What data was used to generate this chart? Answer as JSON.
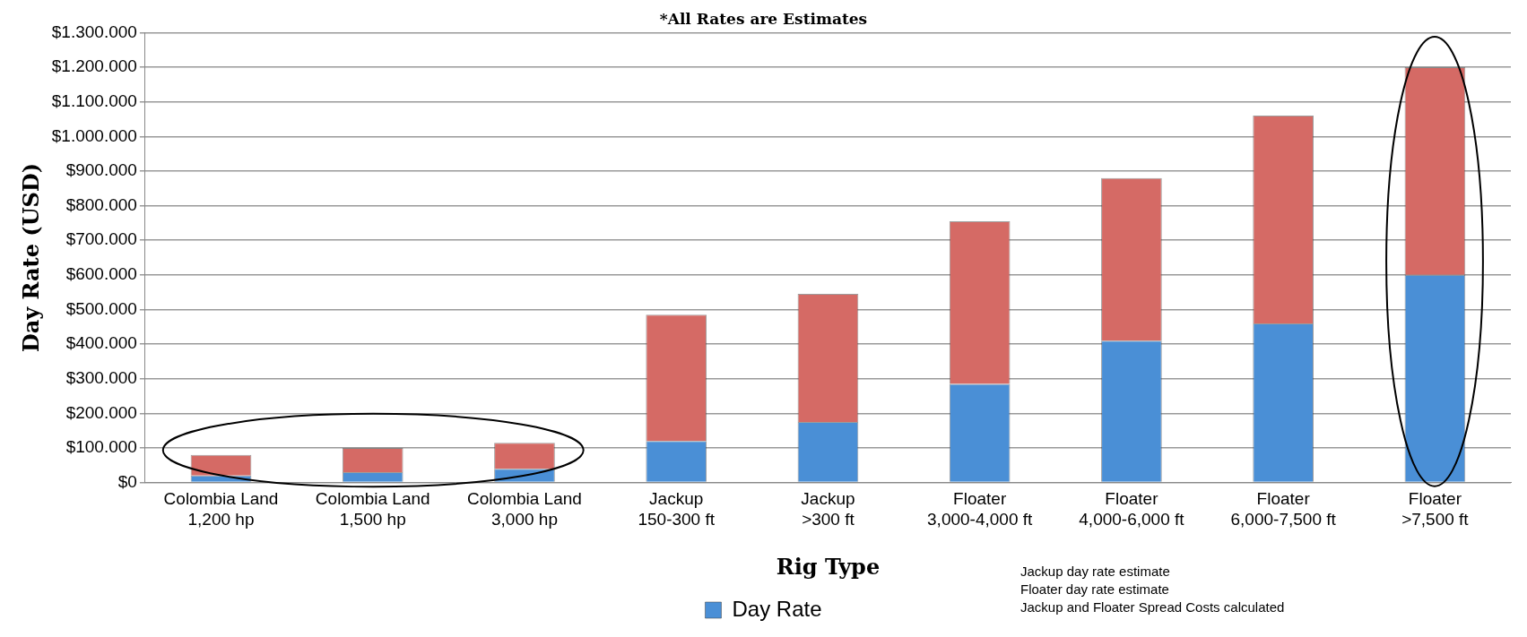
{
  "chart_data": {
    "type": "bar",
    "stacked": true,
    "title": "*All Rates are Estimates",
    "xlabel": "Rig Type",
    "ylabel": "Day Rate (USD)",
    "categories": [
      "Colombia Land\n1,200 hp",
      "Colombia Land\n1,500 hp",
      "Colombia Land\n3,000 hp",
      "Jackup\n150-300 ft",
      "Jackup\n>300 ft",
      "Floater\n3,000-4,000 ft",
      "Floater\n4,000-6,000 ft",
      "Floater\n6,000-7,500 ft",
      "Floater\n>7,500 ft"
    ],
    "series": [
      {
        "name": "Day Rate",
        "color": "#4a8fd6",
        "values": [
          20000,
          30000,
          40000,
          120000,
          175000,
          285000,
          410000,
          460000,
          600000
        ]
      },
      {
        "color": "#d56a65",
        "values": [
          60000,
          70000,
          75000,
          365000,
          370000,
          470000,
          470000,
          600000,
          600000
        ]
      }
    ],
    "ylim": [
      0,
      1300000
    ],
    "yticks": [
      {
        "value": 0,
        "label": "$0"
      },
      {
        "value": 100000,
        "label": "$100.000"
      },
      {
        "value": 200000,
        "label": "$200.000"
      },
      {
        "value": 300000,
        "label": "$300.000"
      },
      {
        "value": 400000,
        "label": "$400.000"
      },
      {
        "value": 500000,
        "label": "$500.000"
      },
      {
        "value": 600000,
        "label": "$600.000"
      },
      {
        "value": 700000,
        "label": "$700.000"
      },
      {
        "value": 800000,
        "label": "$800.000"
      },
      {
        "value": 900000,
        "label": "$900.000"
      },
      {
        "value": 1000000,
        "label": "$1.000.000"
      },
      {
        "value": 1100000,
        "label": "$1.100.000"
      },
      {
        "value": 1200000,
        "label": "$1.200.000"
      },
      {
        "value": 1300000,
        "label": "$1.300.000"
      }
    ],
    "grid": "y",
    "legend": "bottom",
    "annotations": [
      "Jackup day rate estimate",
      "Floater day rate estimate",
      "Jackup and Floater Spread Costs calculated"
    ]
  }
}
